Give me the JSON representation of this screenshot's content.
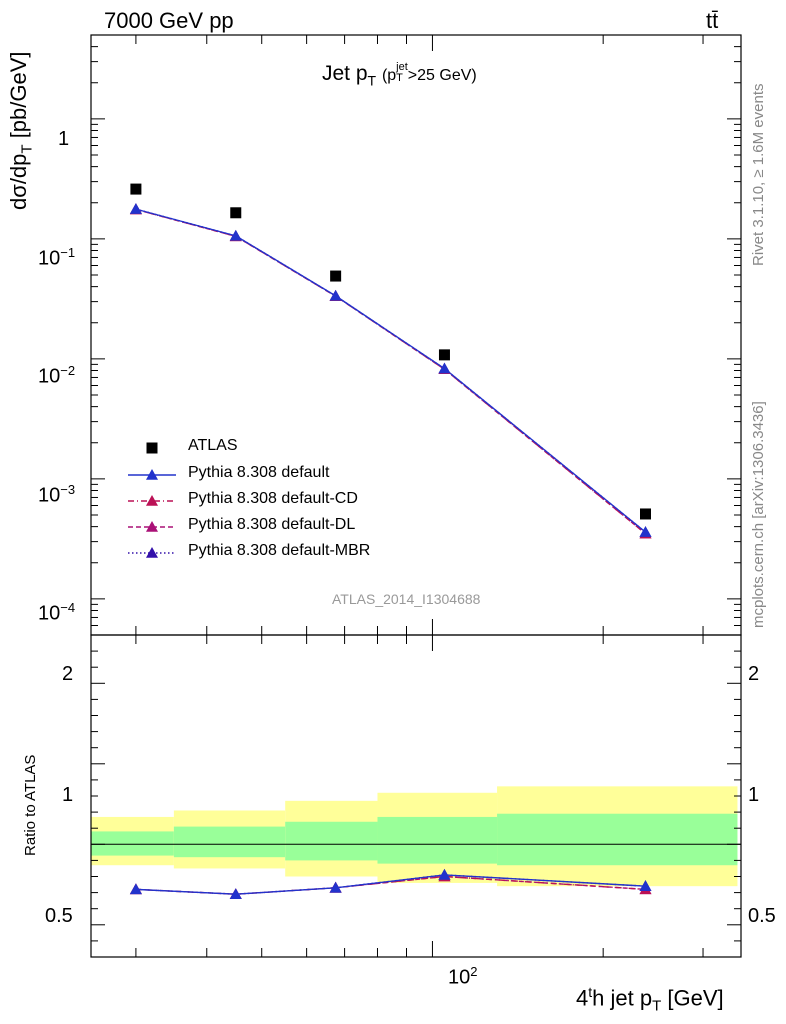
{
  "header": {
    "energy_label": "7000 GeV pp",
    "process_label": "tt̄"
  },
  "title": {
    "main": "Jet p",
    "main_sub": "T",
    "paren_open": "(p",
    "cut_sup": "jet",
    "cut_sub": "T",
    "cut_rest": ">25 GeV)"
  },
  "ylabel_top": {
    "main": "dσ/dp",
    "sub": "T",
    "unit": " [pb/GeV]"
  },
  "ylabel_bottom": "Ratio to ATLAS",
  "xlabel": {
    "pre": "4",
    "sup": "t",
    "mid": "h jet p",
    "sub": "T",
    "unit": " [GeV]"
  },
  "side_texts": {
    "rivet": "Rivet 3.1.10, ≥ 1.6M events",
    "mcplots": "mcplots.cern.ch [arXiv:1306.3436]"
  },
  "watermark": "ATLAS_2014_I1304688",
  "tick_labels": {
    "top_y": [
      {
        "base": "1",
        "exp": ""
      },
      {
        "base": "10",
        "exp": "−1"
      },
      {
        "base": "10",
        "exp": "−2"
      },
      {
        "base": "10",
        "exp": "−3"
      },
      {
        "base": "10",
        "exp": "−4"
      }
    ],
    "bottom_y": [
      "2",
      "1",
      "0.5"
    ],
    "x": {
      "base": "10",
      "exp": "2"
    }
  },
  "colors": {
    "data": "#000000",
    "default": "#2233cc",
    "cd": "#bb1155",
    "dl": "#aa1177",
    "mbr": "#3311aa",
    "band_inner": "#99ff99",
    "band_outer": "#ffff99"
  },
  "chart_data": [
    {
      "type": "scatter",
      "panel": "main",
      "xscale": "log",
      "yscale": "log",
      "xlim": [
        25,
        350
      ],
      "ylim": [
        5e-05,
        5
      ],
      "legend_position": "lower-left",
      "x": [
        30,
        45,
        67.5,
        105,
        237.5
      ],
      "x_edges": [
        [
          25,
          35
        ],
        [
          35,
          55
        ],
        [
          55,
          80
        ],
        [
          80,
          130
        ],
        [
          130,
          345
        ]
      ],
      "series": [
        {
          "name": "ATLAS",
          "style": "square",
          "values": [
            0.26,
            0.165,
            0.049,
            0.0108,
            0.00051
          ]
        },
        {
          "name": "Pythia 8.308 default",
          "style": "solid",
          "values": [
            0.177,
            0.106,
            0.0335,
            0.0083,
            0.00036
          ]
        },
        {
          "name": "Pythia 8.308 default-CD",
          "style": "dashdot",
          "values": [
            0.176,
            0.105,
            0.0333,
            0.0082,
            0.00035
          ]
        },
        {
          "name": "Pythia 8.308 default-DL",
          "style": "dashed",
          "values": [
            0.176,
            0.105,
            0.0333,
            0.0082,
            0.00035
          ]
        },
        {
          "name": "Pythia 8.308 default-MBR",
          "style": "dotted",
          "values": [
            0.177,
            0.106,
            0.0335,
            0.0083,
            0.00036
          ]
        }
      ]
    },
    {
      "type": "line",
      "panel": "ratio",
      "xscale": "log",
      "xlim": [
        25,
        350
      ],
      "ylim": [
        0.3,
        2.3
      ],
      "ylabel": "Ratio to ATLAS",
      "x": [
        30,
        45,
        67.5,
        105,
        237.5
      ],
      "x_edges": [
        [
          25,
          35
        ],
        [
          35,
          55
        ],
        [
          55,
          80
        ],
        [
          80,
          130
        ],
        [
          130,
          345
        ]
      ],
      "band_inner": [
        [
          0.93,
          1.08
        ],
        [
          0.92,
          1.11
        ],
        [
          0.9,
          1.14
        ],
        [
          0.88,
          1.17
        ],
        [
          0.87,
          1.19
        ]
      ],
      "band_outer": [
        [
          0.87,
          1.17
        ],
        [
          0.85,
          1.21
        ],
        [
          0.8,
          1.27
        ],
        [
          0.76,
          1.32
        ],
        [
          0.74,
          1.36
        ]
      ],
      "series": [
        {
          "name": "Pythia 8.308 default",
          "values": [
            0.72,
            0.69,
            0.73,
            0.81,
            0.74
          ]
        },
        {
          "name": "Pythia 8.308 default-CD",
          "values": [
            0.72,
            0.69,
            0.73,
            0.8,
            0.72
          ]
        },
        {
          "name": "Pythia 8.308 default-DL",
          "values": [
            0.72,
            0.69,
            0.73,
            0.8,
            0.72
          ]
        },
        {
          "name": "Pythia 8.308 default-MBR",
          "values": [
            0.72,
            0.69,
            0.73,
            0.81,
            0.74
          ]
        }
      ]
    }
  ]
}
